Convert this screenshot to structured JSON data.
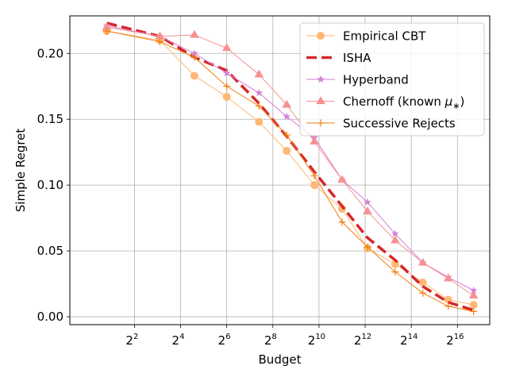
{
  "chart_data": {
    "type": "line",
    "xlabel": "Budget",
    "ylabel": "Simple Regret",
    "x_scale": "log2",
    "xlim_exponent": [
      -0.8,
      17.4
    ],
    "ylim": [
      -0.006,
      0.2285
    ],
    "grid": true,
    "legend_position": "top-right",
    "x_tick_exponents": [
      2,
      4,
      6,
      8,
      10,
      12,
      14,
      16
    ],
    "x_tick_base": "2",
    "y_ticks": [
      0.0,
      0.05,
      0.1,
      0.15,
      0.2
    ],
    "y_tick_labels": [
      "0.00",
      "0.05",
      "0.10",
      "0.15",
      "0.20"
    ],
    "series": [
      {
        "name": "Empirical CBT",
        "color": "#fdb875",
        "marker": "circle",
        "linestyle": "solid",
        "linewidth": 1,
        "x_exponent": [
          0.8,
          3.1,
          4.6,
          6.0,
          7.4,
          8.6,
          9.8,
          11.0,
          12.1,
          13.3,
          14.5,
          15.6,
          16.7
        ],
        "values": [
          0.217,
          0.21,
          0.183,
          0.167,
          0.148,
          0.126,
          0.1,
          0.082,
          0.052,
          0.04,
          0.026,
          0.013,
          0.009
        ]
      },
      {
        "name": "ISHA",
        "color": "#d62728",
        "marker": "none",
        "linestyle": "dashed",
        "linewidth": 3.5,
        "x_exponent": [
          0.8,
          3.1,
          4.6,
          6.0,
          7.4,
          8.6,
          9.8,
          11.0,
          12.1,
          13.3,
          14.5,
          15.6,
          16.7
        ],
        "values": [
          0.223,
          0.213,
          0.197,
          0.187,
          0.162,
          0.137,
          0.11,
          0.084,
          0.06,
          0.043,
          0.023,
          0.011,
          0.005
        ]
      },
      {
        "name": "Hyperband",
        "color": "#d57fd6",
        "marker": "star",
        "linestyle": "solid",
        "linewidth": 1,
        "x_exponent": [
          0.8,
          3.1,
          4.6,
          6.0,
          7.4,
          8.6,
          9.8,
          11.0,
          12.1,
          13.3,
          14.5,
          15.6,
          16.7
        ],
        "values": [
          0.221,
          0.213,
          0.2,
          0.185,
          0.17,
          0.152,
          0.136,
          0.104,
          0.087,
          0.063,
          0.041,
          0.03,
          0.02
        ]
      },
      {
        "name": "Chernoff (known μ*)",
        "name_main": "Chernoff (known ",
        "name_mu": "μ",
        "name_sub": "∗",
        "name_close": ")",
        "color": "#f79191",
        "marker": "triangle",
        "linestyle": "solid",
        "linewidth": 1,
        "x_exponent": [
          0.8,
          3.1,
          4.6,
          6.0,
          7.4,
          8.6,
          9.8,
          11.0,
          12.1,
          13.3,
          14.5,
          15.6,
          16.7
        ],
        "values": [
          0.22,
          0.213,
          0.214,
          0.204,
          0.184,
          0.161,
          0.133,
          0.104,
          0.08,
          0.058,
          0.041,
          0.029,
          0.016
        ]
      },
      {
        "name": "Successive Rejects",
        "color": "#f07f0e",
        "marker": "plus",
        "linestyle": "solid",
        "linewidth": 1,
        "x_exponent": [
          0.8,
          3.1,
          4.6,
          6.0,
          7.4,
          8.6,
          9.8,
          11.0,
          12.1,
          13.3,
          14.5,
          15.6,
          16.7
        ],
        "values": [
          0.217,
          0.209,
          0.197,
          0.175,
          0.16,
          0.138,
          0.107,
          0.072,
          0.053,
          0.034,
          0.018,
          0.008,
          0.004
        ]
      }
    ]
  }
}
